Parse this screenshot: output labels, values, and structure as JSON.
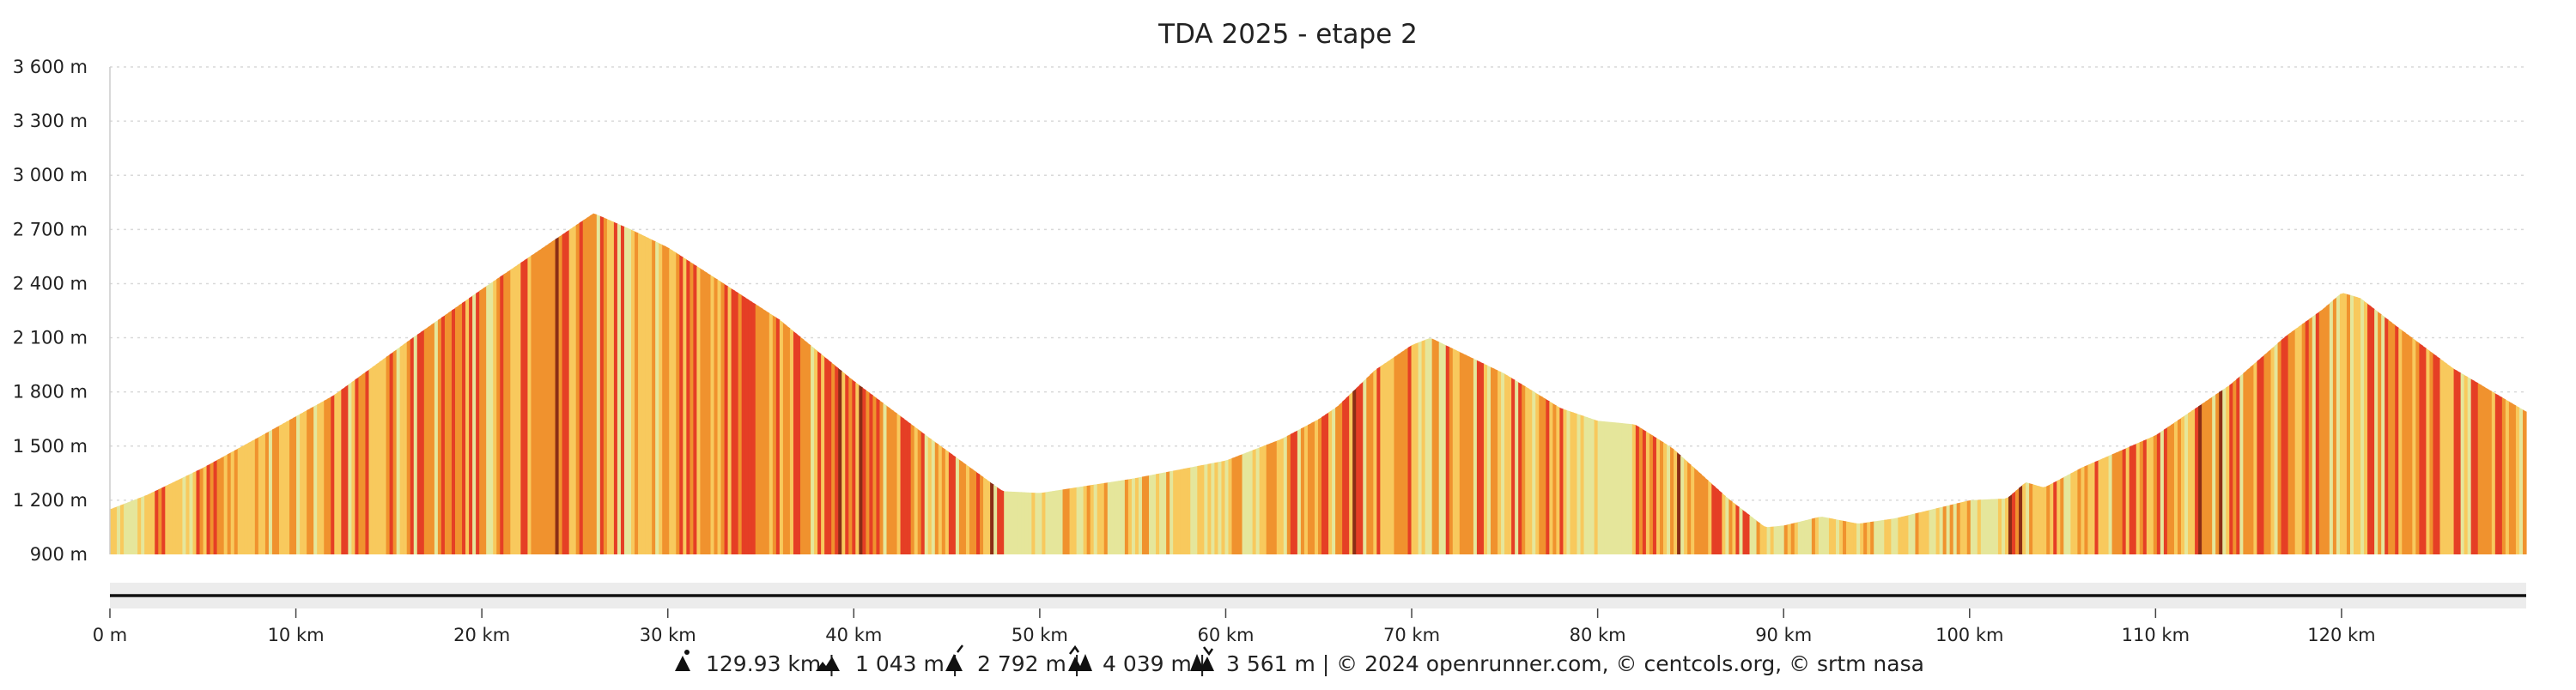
{
  "chart_data": {
    "type": "area",
    "title": "TDA 2025 - etape 2",
    "xlabel": "",
    "ylabel": "",
    "xlim": [
      0,
      129.93
    ],
    "ylim": [
      900,
      3600
    ],
    "grid": true,
    "y_ticks": [
      {
        "value": 900,
        "label": "900 m"
      },
      {
        "value": 1200,
        "label": "1 200 m"
      },
      {
        "value": 1500,
        "label": "1 500 m"
      },
      {
        "value": 1800,
        "label": "1 800 m"
      },
      {
        "value": 2100,
        "label": "2 100 m"
      },
      {
        "value": 2400,
        "label": "2 400 m"
      },
      {
        "value": 2700,
        "label": "2 700 m"
      },
      {
        "value": 3000,
        "label": "3 000 m"
      },
      {
        "value": 3300,
        "label": "3 300 m"
      },
      {
        "value": 3600,
        "label": "3 600 m"
      }
    ],
    "x_ticks": [
      {
        "value": 0,
        "label": "0 m"
      },
      {
        "value": 10,
        "label": "10 km"
      },
      {
        "value": 20,
        "label": "20 km"
      },
      {
        "value": 30,
        "label": "30 km"
      },
      {
        "value": 40,
        "label": "40 km"
      },
      {
        "value": 50,
        "label": "50 km"
      },
      {
        "value": 60,
        "label": "60 km"
      },
      {
        "value": 70,
        "label": "70 km"
      },
      {
        "value": 80,
        "label": "80 km"
      },
      {
        "value": 90,
        "label": "90 km"
      },
      {
        "value": 100,
        "label": "100 km"
      },
      {
        "value": 110,
        "label": "110 km"
      },
      {
        "value": 120,
        "label": "120 km"
      }
    ],
    "profile": {
      "x": [
        0,
        2,
        5,
        8,
        12,
        16,
        20,
        23,
        25,
        26,
        28,
        30,
        33,
        36,
        40,
        44,
        48,
        50,
        55,
        60,
        63,
        65,
        66,
        68,
        70,
        71,
        72,
        75,
        78,
        80,
        82,
        84,
        87,
        89,
        90,
        92,
        94,
        96,
        98,
        100,
        102,
        103,
        104,
        106,
        110,
        114,
        117,
        119,
        120,
        121,
        123,
        126,
        129.93
      ],
      "elevation": [
        1150,
        1230,
        1380,
        1550,
        1780,
        2080,
        2370,
        2580,
        2720,
        2790,
        2700,
        2600,
        2400,
        2200,
        1860,
        1550,
        1250,
        1240,
        1320,
        1420,
        1540,
        1650,
        1720,
        1920,
        2060,
        2100,
        2050,
        1900,
        1710,
        1640,
        1620,
        1490,
        1210,
        1050,
        1060,
        1110,
        1070,
        1100,
        1150,
        1200,
        1210,
        1300,
        1270,
        1380,
        1560,
        1840,
        2110,
        2260,
        2350,
        2320,
        2160,
        1930,
        1690
      ]
    },
    "colors": {
      "flat": "#e5e69b",
      "gentle": "#f8c95d",
      "moderate": "#f0922e",
      "steep": "#e53f25",
      "very_steep": "#8b2e16",
      "axis": "#111111",
      "grid": "#d9d9d9"
    }
  },
  "footer": {
    "distance": "129.93 km |",
    "min_elevation": "1 043 m |",
    "max_elevation": "2 792 m |",
    "ascent": "4 039 m |",
    "descent": "3 561 m | © 2024 openrunner.com, © centcols.org, © srtm nasa"
  },
  "icons": {
    "distance": "distance-peak-icon",
    "min_elevation": "low-mountain-icon",
    "max_elevation": "summit-icon",
    "ascent": "ascent-icon",
    "descent": "descent-icon"
  }
}
